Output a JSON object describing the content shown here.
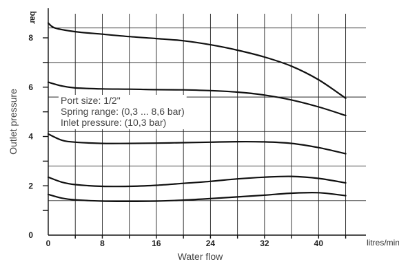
{
  "chart_data": {
    "type": "line",
    "title": "",
    "xlabel": "Water flow",
    "ylabel": "Outlet pressure",
    "x_unit": "litres/min",
    "y_unit": "bar",
    "xlim": [
      0,
      47
    ],
    "ylim": [
      0,
      9.2
    ],
    "x_ticks": [
      0,
      8,
      16,
      24,
      32,
      40
    ],
    "y_ticks": [
      0,
      2,
      4,
      6,
      8
    ],
    "grid": true,
    "annotations": [
      "Port size: 1/2\"",
      "Spring range: (0,3 ... 8,6 bar)",
      "Inlet pressure: (10,3 bar)"
    ],
    "series": [
      {
        "x": [
          0,
          1,
          4,
          8,
          12,
          16,
          20,
          24,
          28,
          32,
          36,
          40,
          44
        ],
        "y": [
          8.6,
          8.4,
          8.25,
          8.15,
          8.05,
          7.97,
          7.88,
          7.72,
          7.5,
          7.22,
          6.85,
          6.3,
          5.55
        ]
      },
      {
        "x": [
          0,
          2,
          4,
          8,
          12,
          16,
          20,
          24,
          28,
          32,
          36,
          40,
          44
        ],
        "y": [
          6.2,
          6.05,
          5.97,
          5.93,
          5.92,
          5.9,
          5.89,
          5.86,
          5.8,
          5.68,
          5.48,
          5.2,
          4.85
        ]
      },
      {
        "x": [
          0,
          2,
          4,
          8,
          12,
          16,
          20,
          24,
          28,
          32,
          36,
          40,
          44
        ],
        "y": [
          4.1,
          3.85,
          3.77,
          3.72,
          3.72,
          3.73,
          3.75,
          3.77,
          3.79,
          3.78,
          3.72,
          3.55,
          3.3
        ]
      },
      {
        "x": [
          0,
          2,
          4,
          8,
          12,
          16,
          20,
          24,
          28,
          32,
          36,
          40,
          44
        ],
        "y": [
          2.35,
          2.15,
          2.05,
          1.98,
          1.98,
          2.02,
          2.1,
          2.18,
          2.28,
          2.35,
          2.38,
          2.3,
          2.12
        ]
      },
      {
        "x": [
          0,
          2,
          4,
          8,
          12,
          16,
          20,
          24,
          28,
          32,
          36,
          40,
          44
        ],
        "y": [
          1.65,
          1.5,
          1.43,
          1.38,
          1.37,
          1.38,
          1.42,
          1.48,
          1.55,
          1.62,
          1.7,
          1.72,
          1.6
        ]
      }
    ]
  }
}
